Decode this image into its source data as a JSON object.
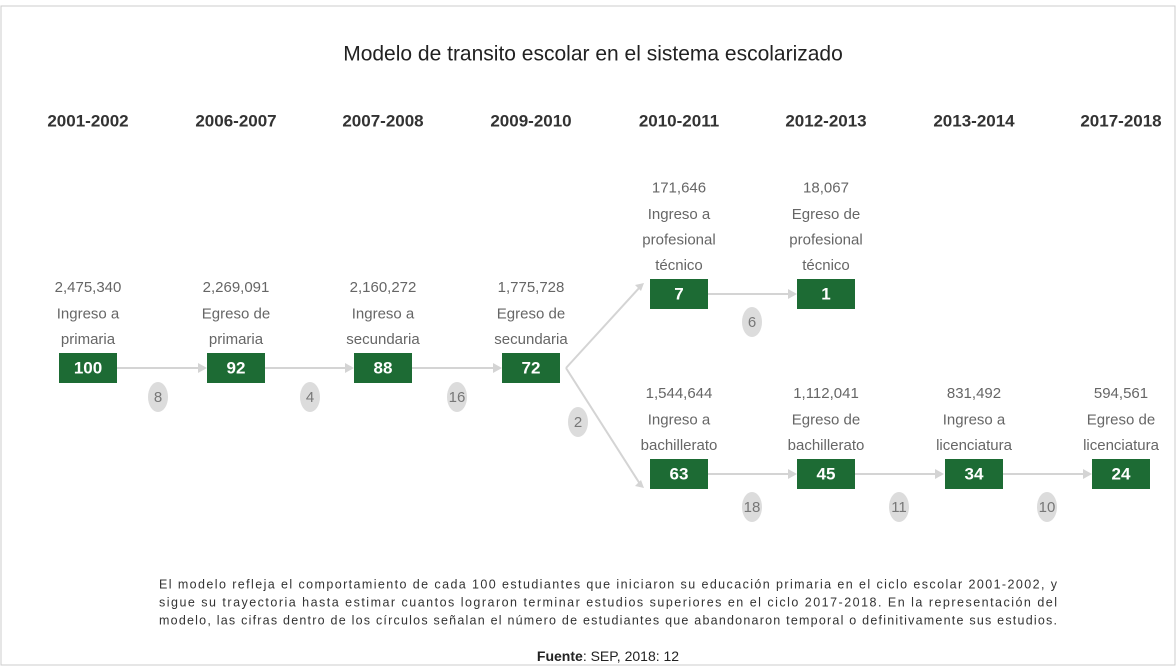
{
  "title": "Modelo de transito escolar en el sistema escolarizado",
  "years": [
    "2001-2002",
    "2006-2007",
    "2007-2008",
    "2009-2010",
    "2010-2011",
    "2012-2013",
    "2013-2014",
    "2017-2018"
  ],
  "nodes": [
    {
      "count": "2,475,340",
      "lines": [
        "Ingreso a",
        "primaria"
      ],
      "value": 100
    },
    {
      "count": "2,269,091",
      "lines": [
        "Egreso de",
        "primaria"
      ],
      "value": 92
    },
    {
      "count": "2,160,272",
      "lines": [
        "Ingreso a",
        "secundaria"
      ],
      "value": 88
    },
    {
      "count": "1,775,728",
      "lines": [
        "Egreso de",
        "secundaria"
      ],
      "value": 72
    },
    {
      "count": "171,646",
      "lines": [
        "Ingreso a",
        "profesional",
        "técnico"
      ],
      "value": 7
    },
    {
      "count": "18,067",
      "lines": [
        "Egreso de",
        "profesional",
        "técnico"
      ],
      "value": 1
    },
    {
      "count": "1,544,644",
      "lines": [
        "Ingreso a",
        "bachillerato"
      ],
      "value": 63
    },
    {
      "count": "1,112,041",
      "lines": [
        "Egreso de",
        "bachillerato"
      ],
      "value": 45
    },
    {
      "count": "831,492",
      "lines": [
        "Ingreso a",
        "licenciatura"
      ],
      "value": 34
    },
    {
      "count": "594,561",
      "lines": [
        "Egreso de",
        "licenciatura"
      ],
      "value": 24
    }
  ],
  "dropouts": [
    8,
    4,
    16,
    2,
    6,
    18,
    11,
    10
  ],
  "note": [
    "El modelo refleja el comportamiento de cada 100 estudiantes que iniciaron su educación primaria en el ciclo escolar 2001-2002, y",
    "sigue su trayectoria hasta estimar cuantos lograron terminar estudios superiores en el ciclo 2017-2018. En la representación del",
    "modelo, las cifras dentro de los círculos señalan el número de estudiantes que abandonaron temporal o definitivamente sus estudios."
  ],
  "source": {
    "label": "Fuente",
    "text": ": SEP, 2018: 12"
  }
}
